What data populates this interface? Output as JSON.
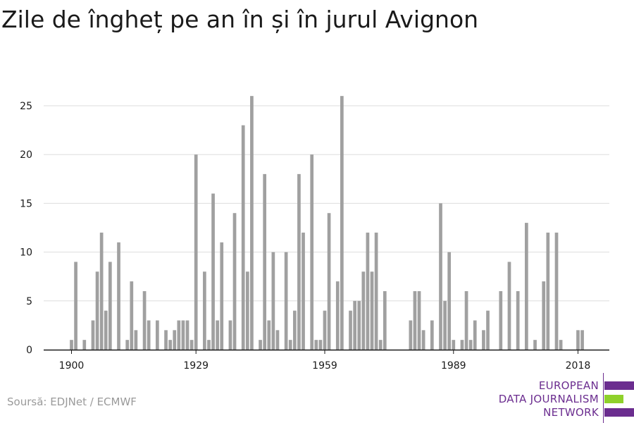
{
  "header": {
    "title": "Zile de îngheț pe an în și în jurul Avignon"
  },
  "footer": {
    "source": "Soursă: EDJNet / ECMWF"
  },
  "logo": {
    "line1": "EUROPEAN",
    "line2": "DATA JOURNALISM",
    "line3": "NETWORK",
    "purple": "#6b2d8f",
    "green": "#8fd12b"
  },
  "colors": {
    "bar": "#a0a0a0",
    "grid": "#dddddd",
    "axis": "#1a1a1a",
    "text": "#1a1a1a"
  },
  "chart_data": {
    "type": "bar",
    "title": "Zile de îngheț pe an în și în jurul Avignon",
    "xlabel": "",
    "ylabel": "",
    "ylim": [
      0,
      27
    ],
    "yticks": [
      0,
      5,
      10,
      15,
      20,
      25
    ],
    "xticks": [
      "1900",
      "1929",
      "1959",
      "1989",
      "2018"
    ],
    "grid": true,
    "categories": [
      "1900",
      "1901",
      "1902",
      "1903",
      "1904",
      "1905",
      "1906",
      "1907",
      "1908",
      "1909",
      "1910",
      "1911",
      "1912",
      "1913",
      "1914",
      "1915",
      "1916",
      "1917",
      "1918",
      "1919",
      "1920",
      "1921",
      "1922",
      "1923",
      "1924",
      "1925",
      "1926",
      "1927",
      "1928",
      "1929",
      "1930",
      "1931",
      "1932",
      "1933",
      "1934",
      "1935",
      "1936",
      "1937",
      "1938",
      "1939",
      "1940",
      "1941",
      "1942",
      "1943",
      "1944",
      "1945",
      "1946",
      "1947",
      "1948",
      "1949",
      "1950",
      "1951",
      "1952",
      "1953",
      "1954",
      "1955",
      "1956",
      "1957",
      "1958",
      "1959",
      "1960",
      "1961",
      "1962",
      "1963",
      "1964",
      "1965",
      "1966",
      "1967",
      "1968",
      "1969",
      "1970",
      "1971",
      "1972",
      "1973",
      "1974",
      "1975",
      "1976",
      "1977",
      "1978",
      "1979",
      "1980",
      "1981",
      "1982",
      "1983",
      "1984",
      "1985",
      "1986",
      "1987",
      "1988",
      "1989",
      "1990",
      "1991",
      "1992",
      "1993",
      "1994",
      "1995",
      "1996",
      "1997",
      "1998",
      "1999",
      "2000",
      "2001",
      "2002",
      "2003",
      "2004",
      "2005",
      "2006",
      "2007",
      "2008",
      "2009",
      "2010",
      "2011",
      "2012",
      "2013",
      "2014",
      "2015",
      "2016",
      "2017",
      "2018",
      "2019"
    ],
    "values": [
      1,
      9,
      0,
      1,
      0,
      3,
      8,
      12,
      4,
      9,
      0,
      11,
      0,
      1,
      7,
      2,
      0,
      6,
      3,
      0,
      3,
      0,
      2,
      1,
      2,
      3,
      3,
      3,
      1,
      20,
      0,
      8,
      1,
      16,
      3,
      11,
      0,
      3,
      14,
      0,
      23,
      8,
      26,
      0,
      1,
      18,
      3,
      10,
      2,
      0,
      10,
      1,
      4,
      18,
      12,
      0,
      20,
      1,
      1,
      4,
      14,
      0,
      7,
      26,
      0,
      4,
      5,
      5,
      8,
      12,
      8,
      12,
      1,
      6,
      0,
      0,
      0,
      0,
      0,
      3,
      6,
      6,
      2,
      0,
      3,
      0,
      15,
      5,
      10,
      1,
      0,
      1,
      6,
      1,
      3,
      0,
      2,
      4,
      0,
      0,
      6,
      0,
      9,
      0,
      6,
      0,
      13,
      0,
      1,
      0,
      7,
      12,
      0,
      12,
      1,
      0,
      0,
      0,
      2,
      2
    ]
  }
}
